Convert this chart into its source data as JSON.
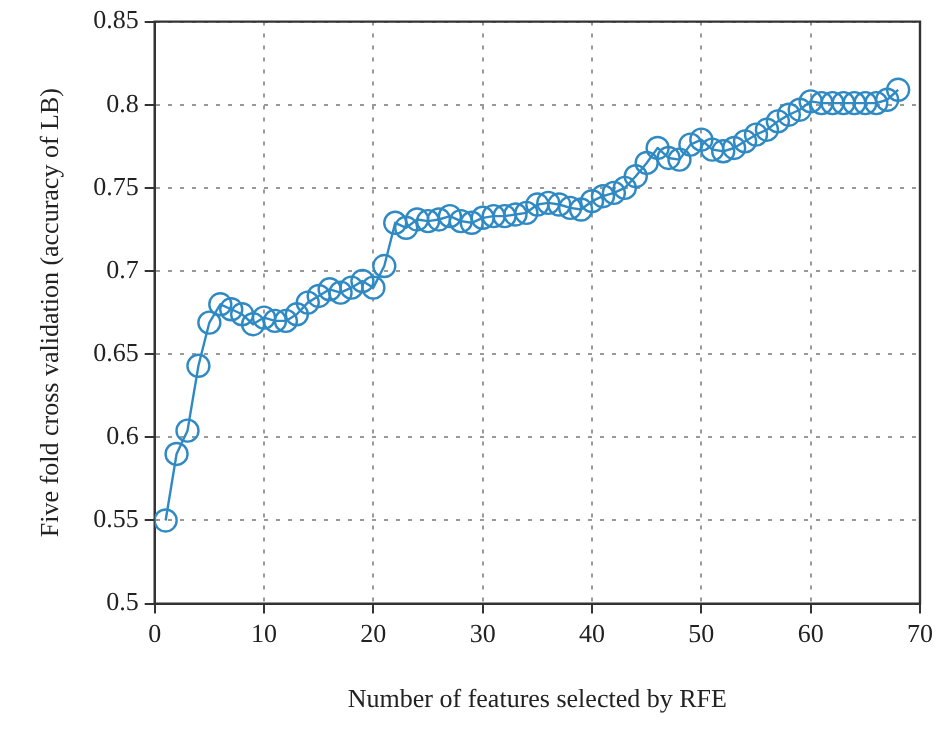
{
  "chart_data": {
    "type": "line",
    "xlabel": "Number of features selected by RFE",
    "ylabel": "Five fold cross validation (accuracy of LB)",
    "x": [
      1,
      2,
      3,
      4,
      5,
      6,
      7,
      8,
      9,
      10,
      11,
      12,
      13,
      14,
      15,
      16,
      17,
      18,
      19,
      20,
      21,
      22,
      23,
      24,
      25,
      26,
      27,
      28,
      29,
      30,
      31,
      32,
      33,
      34,
      35,
      36,
      37,
      38,
      39,
      40,
      41,
      42,
      43,
      44,
      45,
      46,
      47,
      48,
      49,
      50,
      51,
      52,
      53,
      54,
      55,
      56,
      57,
      58,
      59,
      60,
      61,
      62,
      63,
      64,
      65,
      66,
      67,
      68
    ],
    "series": [
      {
        "color": "#2f8ac4",
        "values": [
          0.55,
          0.59,
          0.604,
          0.643,
          0.669,
          0.68,
          0.677,
          0.674,
          0.668,
          0.672,
          0.67,
          0.67,
          0.674,
          0.681,
          0.685,
          0.689,
          0.687,
          0.69,
          0.694,
          0.69,
          0.703,
          0.729,
          0.726,
          0.731,
          0.73,
          0.731,
          0.733,
          0.73,
          0.729,
          0.732,
          0.733,
          0.733,
          0.734,
          0.735,
          0.74,
          0.741,
          0.74,
          0.738,
          0.737,
          0.742,
          0.745,
          0.747,
          0.75,
          0.757,
          0.765,
          0.774,
          0.768,
          0.767,
          0.776,
          0.779,
          0.773,
          0.772,
          0.774,
          0.778,
          0.782,
          0.785,
          0.79,
          0.794,
          0.797,
          0.802,
          0.801,
          0.801,
          0.801,
          0.801,
          0.801,
          0.801,
          0.803,
          0.809
        ]
      }
    ],
    "xlim": [
      0,
      70
    ],
    "xticks": [
      0,
      10,
      20,
      30,
      40,
      50,
      60,
      70
    ],
    "ylim": [
      0.5,
      0.85
    ],
    "yticks": [
      0.5,
      0.55,
      0.6,
      0.65,
      0.7,
      0.75,
      0.8,
      0.85
    ],
    "grid": true,
    "legend": false,
    "marker": "circle",
    "line_style": "solid"
  }
}
